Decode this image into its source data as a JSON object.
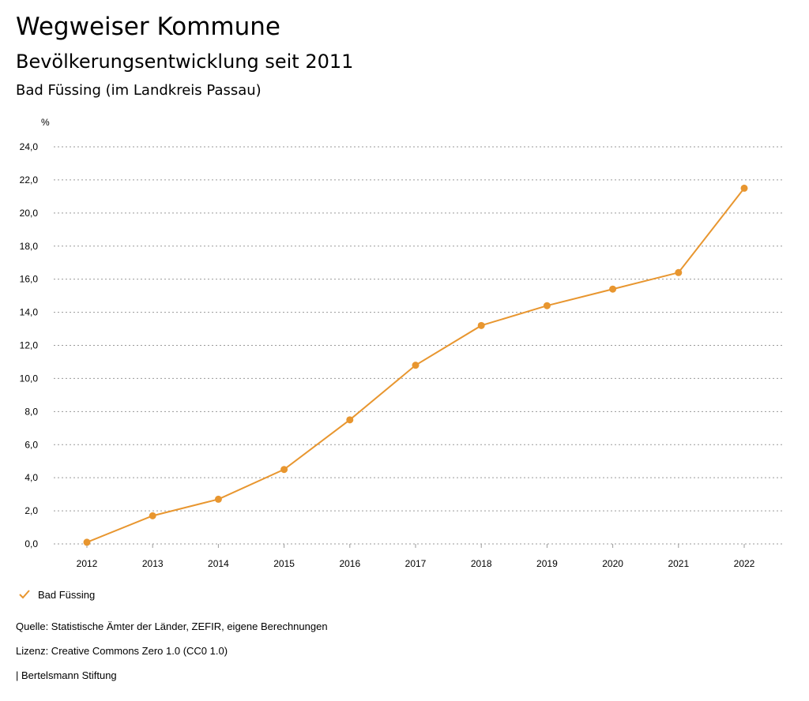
{
  "header": {
    "title": "Wegweiser Kommune",
    "subtitle": "Bevölkerungsentwicklung seit 2011",
    "region": "Bad Füssing (im Landkreis Passau)"
  },
  "chart_data": {
    "type": "line",
    "ylabel": "%",
    "ylim": [
      0,
      24
    ],
    "y_ticks": [
      "0,0",
      "2,0",
      "4,0",
      "6,0",
      "8,0",
      "10,0",
      "12,0",
      "14,0",
      "16,0",
      "18,0",
      "20,0",
      "22,0",
      "24,0"
    ],
    "categories": [
      "2012",
      "2013",
      "2014",
      "2015",
      "2016",
      "2017",
      "2018",
      "2019",
      "2020",
      "2021",
      "2022"
    ],
    "grid": true,
    "legend_position": "bottom-left",
    "series": [
      {
        "name": "Bad Füssing",
        "color": "#e8962f",
        "values": [
          0.1,
          1.7,
          2.7,
          4.5,
          7.5,
          10.8,
          13.2,
          14.4,
          15.4,
          16.4,
          21.5
        ]
      }
    ]
  },
  "legend": {
    "label": "Bad Füssing",
    "icon": "check-icon"
  },
  "footer": {
    "source": "Quelle: Statistische Ämter der Länder, ZEFIR, eigene Berechnungen",
    "license": "Lizenz: Creative Commons Zero 1.0 (CC0 1.0)",
    "publisher": "| Bertelsmann Stiftung"
  }
}
